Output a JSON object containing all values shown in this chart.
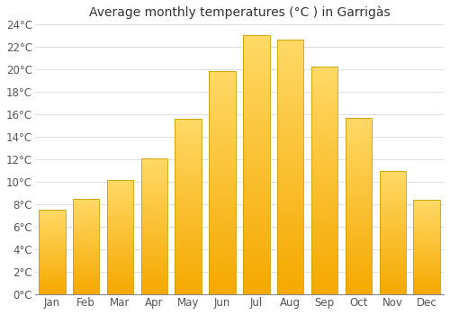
{
  "months": [
    "Jan",
    "Feb",
    "Mar",
    "Apr",
    "May",
    "Jun",
    "Jul",
    "Aug",
    "Sep",
    "Oct",
    "Nov",
    "Dec"
  ],
  "values": [
    7.5,
    8.5,
    10.2,
    12.1,
    15.6,
    19.8,
    23.0,
    22.6,
    20.2,
    15.7,
    11.0,
    8.4
  ],
  "bar_color_bottom": "#F5A800",
  "bar_color_top": "#FFD966",
  "bar_edge_color": "#C8A000",
  "title": "Average monthly temperatures (°C ) in Garrigàs",
  "ylim": [
    0,
    24
  ],
  "ytick_step": 2,
  "background_color": "#ffffff",
  "grid_color": "#dddddd",
  "title_fontsize": 10,
  "tick_fontsize": 8.5,
  "bar_width": 0.78
}
